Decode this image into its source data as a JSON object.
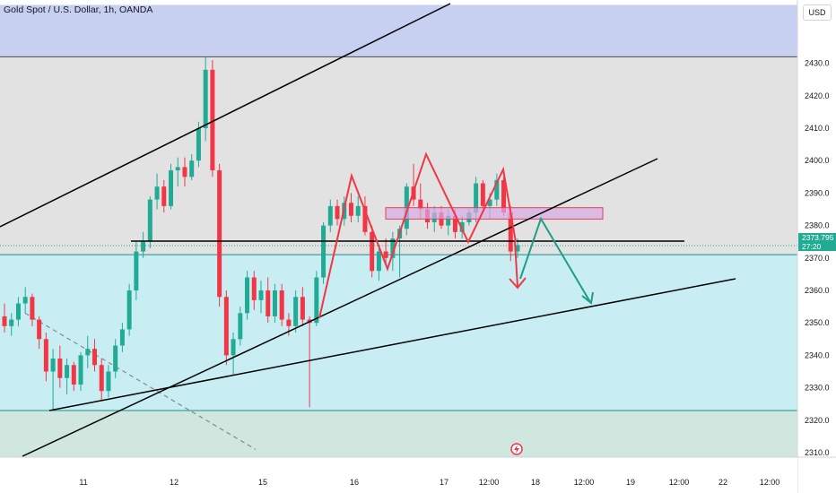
{
  "header": {
    "title": "Gold Spot / U.S. Dollar, 1h, OANDA",
    "currency_button": "USD"
  },
  "price_badge": {
    "price": "2373.795",
    "countdown": "27:20"
  },
  "colors": {
    "bull": "#22ab94",
    "bear": "#f23645",
    "zone_top": "#c8d0f2",
    "zone_mid": "#e2e2e2",
    "zone_low": "#c8eef3",
    "zone_bottom": "#cfe7de"
  },
  "chart_data": {
    "type": "candlestick",
    "title": "Gold Spot / U.S. Dollar, 1h, OANDA",
    "x_ticks": [
      "11",
      "12",
      "15",
      "16",
      "17",
      "12:00",
      "18",
      "12:00",
      "19",
      "12:00",
      "22",
      "12:00"
    ],
    "y_ticks": [
      2430,
      2420,
      2410,
      2400,
      2390,
      2380,
      2370,
      2360,
      2350,
      2340,
      2330,
      2320,
      2310
    ],
    "ylim": [
      2308.6,
      2448.0
    ],
    "last_price": 2373.795,
    "zones": [
      {
        "from": 2432,
        "to": 2448
      },
      {
        "from": 2371,
        "to": 2432
      },
      {
        "from": 2323,
        "to": 2371
      },
      {
        "from": 2308.6,
        "to": 2323
      }
    ],
    "resistance_box": {
      "from": 2382,
      "to": 2385.5
    },
    "horizontal_line": 2375.2,
    "candles": [
      {
        "o": 2352,
        "h": 2356,
        "l": 2347,
        "c": 2349
      },
      {
        "o": 2349,
        "h": 2353,
        "l": 2346,
        "c": 2351
      },
      {
        "o": 2351,
        "h": 2358,
        "l": 2349,
        "c": 2356
      },
      {
        "o": 2356,
        "h": 2361,
        "l": 2353,
        "c": 2358
      },
      {
        "o": 2358,
        "h": 2359,
        "l": 2349,
        "c": 2351
      },
      {
        "o": 2351,
        "h": 2352,
        "l": 2342,
        "c": 2345
      },
      {
        "o": 2345,
        "h": 2347,
        "l": 2332,
        "c": 2335
      },
      {
        "o": 2335,
        "h": 2342,
        "l": 2323,
        "c": 2339
      },
      {
        "o": 2339,
        "h": 2343,
        "l": 2330,
        "c": 2333
      },
      {
        "o": 2333,
        "h": 2339,
        "l": 2328,
        "c": 2337
      },
      {
        "o": 2337,
        "h": 2338,
        "l": 2329,
        "c": 2331
      },
      {
        "o": 2331,
        "h": 2341,
        "l": 2329,
        "c": 2340
      },
      {
        "o": 2340,
        "h": 2346,
        "l": 2336,
        "c": 2342
      },
      {
        "o": 2342,
        "h": 2345,
        "l": 2335,
        "c": 2337
      },
      {
        "o": 2337,
        "h": 2339,
        "l": 2326,
        "c": 2329
      },
      {
        "o": 2329,
        "h": 2337,
        "l": 2327,
        "c": 2335
      },
      {
        "o": 2335,
        "h": 2345,
        "l": 2333,
        "c": 2343
      },
      {
        "o": 2343,
        "h": 2350,
        "l": 2341,
        "c": 2348
      },
      {
        "o": 2348,
        "h": 2362,
        "l": 2346,
        "c": 2360
      },
      {
        "o": 2360,
        "h": 2375,
        "l": 2357,
        "c": 2372
      },
      {
        "o": 2372,
        "h": 2378,
        "l": 2370,
        "c": 2375
      },
      {
        "o": 2375,
        "h": 2389,
        "l": 2373,
        "c": 2388
      },
      {
        "o": 2388,
        "h": 2396,
        "l": 2385,
        "c": 2392
      },
      {
        "o": 2392,
        "h": 2394,
        "l": 2384,
        "c": 2386
      },
      {
        "o": 2386,
        "h": 2399,
        "l": 2385,
        "c": 2397
      },
      {
        "o": 2397,
        "h": 2401,
        "l": 2392,
        "c": 2398
      },
      {
        "o": 2398,
        "h": 2401,
        "l": 2392,
        "c": 2395
      },
      {
        "o": 2395,
        "h": 2402,
        "l": 2394,
        "c": 2400
      },
      {
        "o": 2400,
        "h": 2412,
        "l": 2398,
        "c": 2410
      },
      {
        "o": 2410,
        "h": 2432,
        "l": 2406,
        "c": 2428
      },
      {
        "o": 2428,
        "h": 2431,
        "l": 2395,
        "c": 2397
      },
      {
        "o": 2397,
        "h": 2399,
        "l": 2355,
        "c": 2358
      },
      {
        "o": 2358,
        "h": 2360,
        "l": 2337,
        "c": 2340
      },
      {
        "o": 2340,
        "h": 2347,
        "l": 2334,
        "c": 2345
      },
      {
        "o": 2345,
        "h": 2355,
        "l": 2343,
        "c": 2353
      },
      {
        "o": 2353,
        "h": 2366,
        "l": 2351,
        "c": 2364
      },
      {
        "o": 2364,
        "h": 2366,
        "l": 2354,
        "c": 2357
      },
      {
        "o": 2357,
        "h": 2363,
        "l": 2353,
        "c": 2360
      },
      {
        "o": 2360,
        "h": 2364,
        "l": 2350,
        "c": 2352
      },
      {
        "o": 2352,
        "h": 2362,
        "l": 2350,
        "c": 2360
      },
      {
        "o": 2360,
        "h": 2362,
        "l": 2349,
        "c": 2351
      },
      {
        "o": 2351,
        "h": 2353,
        "l": 2346,
        "c": 2349
      },
      {
        "o": 2349,
        "h": 2360,
        "l": 2347,
        "c": 2358
      },
      {
        "o": 2358,
        "h": 2361,
        "l": 2349,
        "c": 2351
      },
      {
        "o": 2351,
        "h": 2352,
        "l": 2324,
        "c": 2350
      },
      {
        "o": 2350,
        "h": 2366,
        "l": 2349,
        "c": 2364
      },
      {
        "o": 2364,
        "h": 2381,
        "l": 2362,
        "c": 2380
      },
      {
        "o": 2380,
        "h": 2388,
        "l": 2378,
        "c": 2386
      },
      {
        "o": 2386,
        "h": 2388,
        "l": 2380,
        "c": 2382
      },
      {
        "o": 2382,
        "h": 2389,
        "l": 2380,
        "c": 2387
      },
      {
        "o": 2387,
        "h": 2390,
        "l": 2381,
        "c": 2383
      },
      {
        "o": 2383,
        "h": 2389,
        "l": 2381,
        "c": 2386
      },
      {
        "o": 2386,
        "h": 2389,
        "l": 2377,
        "c": 2378
      },
      {
        "o": 2378,
        "h": 2380,
        "l": 2364,
        "c": 2366
      },
      {
        "o": 2366,
        "h": 2374,
        "l": 2363,
        "c": 2372
      },
      {
        "o": 2372,
        "h": 2376,
        "l": 2368,
        "c": 2370
      },
      {
        "o": 2370,
        "h": 2378,
        "l": 2366,
        "c": 2376
      },
      {
        "o": 2376,
        "h": 2380,
        "l": 2364,
        "c": 2379
      },
      {
        "o": 2379,
        "h": 2393,
        "l": 2377,
        "c": 2392
      },
      {
        "o": 2392,
        "h": 2399,
        "l": 2386,
        "c": 2388
      },
      {
        "o": 2388,
        "h": 2393,
        "l": 2382,
        "c": 2385
      },
      {
        "o": 2385,
        "h": 2387,
        "l": 2379,
        "c": 2381
      },
      {
        "o": 2381,
        "h": 2386,
        "l": 2378,
        "c": 2384
      },
      {
        "o": 2384,
        "h": 2386,
        "l": 2379,
        "c": 2380
      },
      {
        "o": 2380,
        "h": 2385,
        "l": 2377,
        "c": 2383
      },
      {
        "o": 2383,
        "h": 2385,
        "l": 2376,
        "c": 2378
      },
      {
        "o": 2378,
        "h": 2383,
        "l": 2376,
        "c": 2381
      },
      {
        "o": 2381,
        "h": 2385,
        "l": 2380,
        "c": 2384
      },
      {
        "o": 2384,
        "h": 2395,
        "l": 2381,
        "c": 2393
      },
      {
        "o": 2393,
        "h": 2394,
        "l": 2385,
        "c": 2386
      },
      {
        "o": 2386,
        "h": 2390,
        "l": 2382,
        "c": 2388
      },
      {
        "o": 2388,
        "h": 2396,
        "l": 2386,
        "c": 2394
      },
      {
        "o": 2394,
        "h": 2395,
        "l": 2383,
        "c": 2384
      },
      {
        "o": 2384,
        "h": 2386,
        "l": 2369,
        "c": 2372
      },
      {
        "o": 2372,
        "h": 2376,
        "l": 2370,
        "c": 2374
      }
    ]
  }
}
